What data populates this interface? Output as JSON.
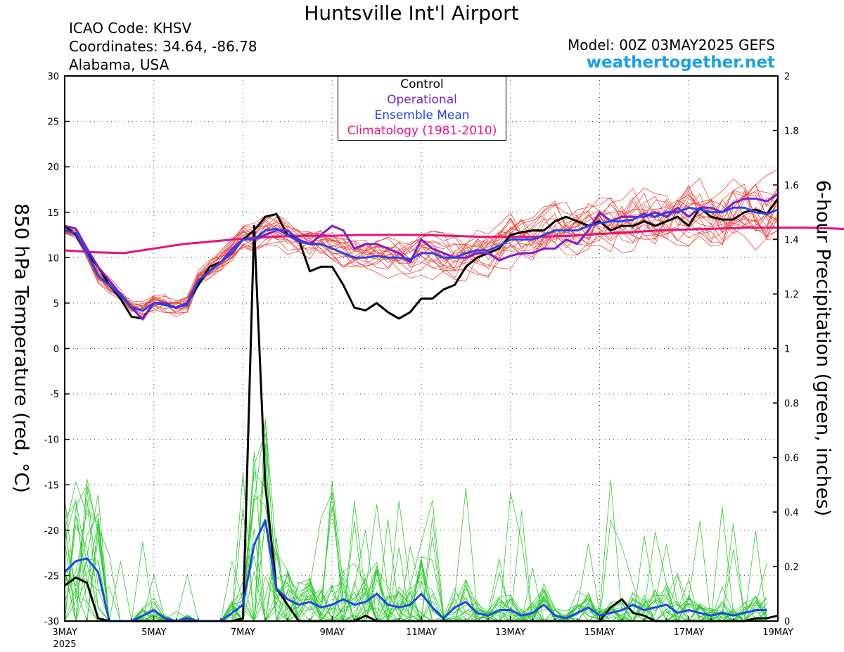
{
  "header": {
    "title": "Huntsville Int'l Airport",
    "icao": "ICAO Code: KHSV",
    "coords": "Coordinates: 34.64, -86.78",
    "region": "Alabama, USA",
    "model": "Model: 00Z 03MAY2025 GEFS",
    "site": "weathertogether.net"
  },
  "legend": {
    "control": "Control",
    "operational": "Operational",
    "ensemble_mean": "Ensemble Mean",
    "climatology": "Climatology (1981-2010)"
  },
  "colors": {
    "control": "#000000",
    "operational": "#7a1fd0",
    "ensemble_mean": "#2244ee",
    "climatology": "#e8117f",
    "temp_member": "#f0483a",
    "precip_member": "#2ecc2e",
    "site": "#1aa0e8"
  },
  "chart_data": {
    "type": "line",
    "ylabel": "850 hPa Temperature (red, °C)",
    "y2label": "6-hour Precipitation (green, inches)",
    "ylim": [
      -30,
      30
    ],
    "y2lim": [
      0,
      2
    ],
    "yticks": [
      "30",
      "25",
      "20",
      "15",
      "10",
      "5",
      "0",
      "-5",
      "-10",
      "-15",
      "-20",
      "-25",
      "-30"
    ],
    "y2ticks": [
      "2",
      "1.8",
      "1.6",
      "1.4",
      "1.2",
      "1",
      "0.8",
      "0.6",
      "0.4",
      "0.2",
      "0"
    ],
    "xlim_hours": [
      0,
      384
    ],
    "step_hours": 6,
    "xticks": [
      {
        "label": "3MAY",
        "sub": "2025"
      },
      {
        "label": "5MAY",
        "sub": ""
      },
      {
        "label": "7MAY",
        "sub": ""
      },
      {
        "label": "9MAY",
        "sub": ""
      },
      {
        "label": "11MAY",
        "sub": ""
      },
      {
        "label": "13MAY",
        "sub": ""
      },
      {
        "label": "15MAY",
        "sub": ""
      },
      {
        "label": "17MAY",
        "sub": ""
      },
      {
        "label": "19MAY",
        "sub": ""
      }
    ],
    "grid": true,
    "series": [
      {
        "name": "Control",
        "axis": "temp",
        "color": "#000000",
        "width": 3,
        "values": [
          13.5,
          12.5,
          10.5,
          9,
          7,
          5.5,
          3.5,
          3.3,
          5,
          4.8,
          4.5,
          5,
          7,
          9,
          9.5,
          10.5,
          12,
          13,
          14.5,
          14.8,
          12.5,
          12,
          8.5,
          9,
          9,
          7,
          4.5,
          4.2,
          5,
          4,
          3.3,
          4,
          5.5,
          5.5,
          6.5,
          7,
          9,
          10,
          10.5,
          11,
          12.5,
          12.8,
          13,
          13,
          14,
          14.5,
          14,
          13.5,
          14,
          13,
          13.5,
          13.5,
          14,
          13.5,
          14,
          14.5,
          13.5,
          15.5,
          14.5,
          14.2,
          14.2,
          15,
          15.3,
          14.8,
          16.5
        ]
      },
      {
        "name": "Operational",
        "axis": "temp",
        "color": "#7a1fd0",
        "width": 3,
        "values": [
          13.5,
          13.2,
          11,
          9,
          7.5,
          6,
          4.5,
          3.2,
          5,
          5,
          4.5,
          5,
          7.5,
          8.5,
          9.5,
          11,
          12,
          12,
          12.5,
          13,
          13,
          12,
          11.5,
          12.5,
          13.5,
          13,
          11,
          11.5,
          11.5,
          11,
          10.5,
          9.5,
          12,
          11,
          10.5,
          10,
          10,
          10.5,
          10.5,
          9.7,
          10.2,
          10.5,
          10.5,
          11,
          11,
          12,
          11.5,
          13,
          15,
          14,
          14.5,
          14.5,
          14.5,
          15,
          14.5,
          15.5,
          14.5,
          15.5,
          15.5,
          15,
          16,
          16.5,
          16.5,
          16.2,
          17
        ]
      },
      {
        "name": "Ensemble Mean",
        "axis": "temp",
        "color": "#2244ee",
        "width": 3,
        "values": [
          13,
          12.7,
          10.5,
          8,
          7,
          5.8,
          4.5,
          4.2,
          5,
          4.8,
          4.5,
          4.8,
          7.5,
          8.5,
          9.5,
          10.5,
          12,
          12,
          13,
          13.2,
          12.5,
          11.8,
          11.5,
          11.5,
          11,
          10.5,
          10,
          10,
          10.2,
          10,
          10,
          9.8,
          10.5,
          10.5,
          10,
          10,
          10.5,
          10.8,
          10.8,
          11.3,
          12,
          12,
          12,
          12.5,
          13,
          13,
          13,
          13.5,
          13.8,
          14,
          14,
          14.2,
          14.8,
          14.5,
          15,
          15,
          15.5,
          15.3,
          15,
          15,
          15.5,
          15.5,
          15,
          14.8,
          15.3
        ]
      },
      {
        "name": "Climatology (1981-2010)",
        "axis": "temp",
        "color": "#e8117f",
        "width": 3,
        "values": [
          10.8,
          10.6,
          10.5,
          11,
          11.5,
          11.8,
          12.1,
          12.3,
          12.4,
          12.4,
          12.5,
          12.5,
          12.5,
          12.4,
          12.3,
          12.3,
          12.3,
          12.4,
          12.6,
          12.8,
          13,
          13.1,
          13.2,
          13.3,
          13.3,
          13.3,
          13.2,
          13,
          12.8
        ]
      },
      {
        "name": "Control Precip",
        "axis": "precip",
        "color": "#000000",
        "width": 3,
        "values": [
          0.13,
          0.16,
          0.14,
          0.01,
          0,
          0,
          0,
          0,
          0,
          0,
          0,
          0,
          0,
          0,
          0,
          0,
          0.01,
          1.45,
          0.5,
          0.12,
          0.06,
          0,
          0,
          0,
          0,
          0,
          0,
          0.02,
          0,
          0,
          0,
          0,
          0,
          0,
          0,
          0,
          0,
          0,
          0,
          0,
          0,
          0,
          0,
          0,
          0,
          0,
          0,
          0,
          0,
          0.05,
          0.08,
          0.03,
          0.02,
          0,
          0,
          0,
          0,
          0,
          0,
          0,
          0,
          0,
          0.01,
          0.01,
          0.02
        ]
      },
      {
        "name": "Ensemble Mean Precip",
        "axis": "precip",
        "color": "#2244ee",
        "width": 3,
        "values": [
          0.18,
          0.22,
          0.23,
          0.18,
          0,
          0,
          0,
          0.02,
          0.04,
          0.01,
          0,
          0.01,
          0,
          0,
          0,
          0.03,
          0.06,
          0.28,
          0.37,
          0.12,
          0.08,
          0.06,
          0.07,
          0.05,
          0.06,
          0.08,
          0.06,
          0.07,
          0.1,
          0.06,
          0.05,
          0.06,
          0.1,
          0.05,
          0.01,
          0.05,
          0.07,
          0.03,
          0.02,
          0.04,
          0.04,
          0.02,
          0.03,
          0.06,
          0.02,
          0.01,
          0.03,
          0.05,
          0.02,
          0.03,
          0.04,
          0.06,
          0.04,
          0.05,
          0.06,
          0.03,
          0.04,
          0.03,
          0.02,
          0.03,
          0.02,
          0.03,
          0.04,
          0.04
        ]
      }
    ]
  }
}
